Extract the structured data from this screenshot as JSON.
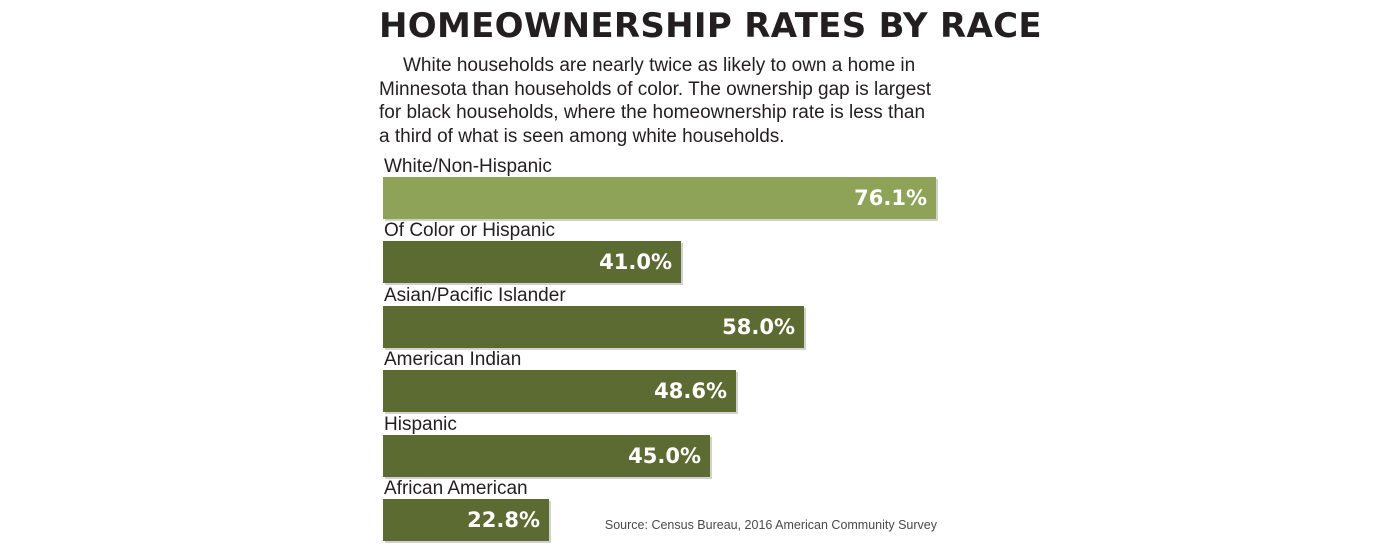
{
  "title": "HOMEOWNERSHIP RATES BY RACE",
  "subtitle": "White households are nearly twice as likely to own a home in Minnesota than households of color. The ownership gap is largest for black households, where the homeownership rate is less than a third of what is seen among white households.",
  "source": "Source: Census Bureau, 2016 American Community Survey",
  "colors": {
    "highlight_bar": "#8fa358",
    "bar": "#5c6b32",
    "value_text": "#ffffff"
  },
  "chart_data": {
    "type": "bar",
    "orientation": "horizontal",
    "title": "HOMEOWNERSHIP RATES BY RACE",
    "categories": [
      "White/Non-Hispanic",
      "Of Color or Hispanic",
      "Asian/Pacific Islander",
      "American Indian",
      "Hispanic",
      "African American"
    ],
    "values": [
      76.1,
      41.0,
      58.0,
      48.6,
      45.0,
      22.8
    ],
    "value_labels": [
      "76.1%",
      "41.0%",
      "58.0%",
      "48.6%",
      "45.0%",
      "22.8%"
    ],
    "unit": "%",
    "xlim": [
      0,
      76.1
    ],
    "grid": false,
    "legend": "none"
  }
}
